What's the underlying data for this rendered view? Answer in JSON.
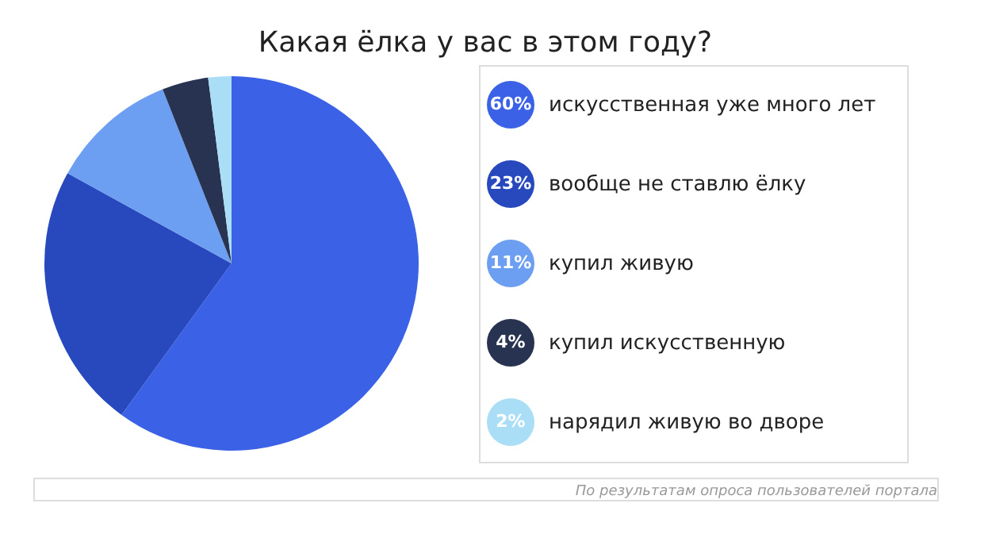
{
  "chart_data": {
    "type": "pie",
    "title": "Какая ёлка у вас в этом году?",
    "categories": [
      "искусственная уже много лет",
      "вообще не ставлю ёлку",
      "купил живую",
      "купил искусственную",
      "нарядил живую во дворе"
    ],
    "values": [
      60,
      23,
      11,
      4,
      2
    ],
    "colors": [
      "#3b62e6",
      "#2849bd",
      "#6c9ef2",
      "#283352",
      "#a9def6"
    ],
    "value_labels": [
      "60%",
      "23%",
      "11%",
      "4%",
      "2%"
    ],
    "legend": "right",
    "annotations": [
      "По результатам опроса пользователей портала"
    ]
  }
}
